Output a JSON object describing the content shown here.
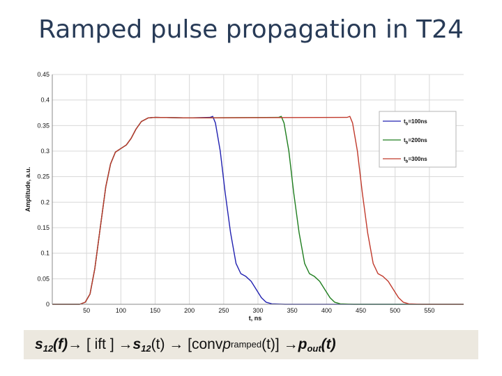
{
  "slide": {
    "title": "Ramped pulse propagation in T24",
    "formula": {
      "s_symbol": "s",
      "sub_12": "12",
      "f_paren_open": "(",
      "f_var": "f",
      "f_paren_close": ")",
      "arrow_ift": " → [ ift ] → ",
      "t_part": " (t) → [conv ",
      "p_symbol": "p",
      "sub_ramped": "ramped",
      "t_part2": "(t)] → ",
      "pout_symbol": "p",
      "sub_out": "out",
      "paren_t_open": "(",
      "t_bold": "t",
      "paren_t_close": ")"
    }
  },
  "colors": {
    "blue": "#2020b0",
    "green": "#1d7d1d",
    "red": "#c0392b",
    "grid": "#d8d8d8",
    "title": "#283b57",
    "formula_bg": "#ece8df"
  },
  "chart_data": {
    "type": "line",
    "xlabel": "t, ns",
    "ylabel": "Amplitude, a.u.",
    "xlim": [
      0,
      600
    ],
    "ylim": [
      0,
      0.45
    ],
    "x_ticks": [
      50,
      100,
      150,
      200,
      250,
      300,
      350,
      400,
      450,
      500,
      550
    ],
    "y_ticks": [
      0,
      0.05,
      0.1,
      0.15,
      0.2,
      0.25,
      0.3,
      0.35,
      0.4,
      0.45
    ],
    "y_tick_labels": [
      "0",
      "0.05",
      "0.1",
      "0.15",
      "0.2",
      "0.25",
      "0.3",
      "0.35",
      "0.4",
      "0.45"
    ],
    "grid": true,
    "legend_position": "top-right",
    "series": [
      {
        "name_base": "t",
        "name_sub": "b",
        "name_rest": "=100ns",
        "color_key": "blue",
        "points": [
          [
            0,
            0
          ],
          [
            40,
            0
          ],
          [
            48,
            0.004
          ],
          [
            55,
            0.02
          ],
          [
            62,
            0.07
          ],
          [
            70,
            0.15
          ],
          [
            78,
            0.23
          ],
          [
            85,
            0.275
          ],
          [
            92,
            0.298
          ],
          [
            100,
            0.305
          ],
          [
            108,
            0.312
          ],
          [
            115,
            0.325
          ],
          [
            122,
            0.343
          ],
          [
            130,
            0.358
          ],
          [
            140,
            0.365
          ],
          [
            150,
            0.366
          ],
          [
            200,
            0.365
          ],
          [
            230,
            0.366
          ],
          [
            234,
            0.368
          ],
          [
            238,
            0.355
          ],
          [
            245,
            0.3
          ],
          [
            252,
            0.22
          ],
          [
            260,
            0.14
          ],
          [
            268,
            0.08
          ],
          [
            275,
            0.06
          ],
          [
            282,
            0.055
          ],
          [
            290,
            0.045
          ],
          [
            297,
            0.03
          ],
          [
            305,
            0.013
          ],
          [
            312,
            0.004
          ],
          [
            320,
            0.001
          ],
          [
            340,
            0
          ],
          [
            600,
            0
          ]
        ]
      },
      {
        "name_base": "t",
        "name_sub": "b",
        "name_rest": "=200ns",
        "color_key": "green",
        "points": [
          [
            0,
            0
          ],
          [
            40,
            0
          ],
          [
            48,
            0.004
          ],
          [
            55,
            0.02
          ],
          [
            62,
            0.07
          ],
          [
            70,
            0.15
          ],
          [
            78,
            0.23
          ],
          [
            85,
            0.275
          ],
          [
            92,
            0.298
          ],
          [
            100,
            0.305
          ],
          [
            108,
            0.312
          ],
          [
            115,
            0.325
          ],
          [
            122,
            0.343
          ],
          [
            130,
            0.358
          ],
          [
            140,
            0.365
          ],
          [
            150,
            0.366
          ],
          [
            200,
            0.365
          ],
          [
            330,
            0.366
          ],
          [
            334,
            0.368
          ],
          [
            338,
            0.355
          ],
          [
            345,
            0.3
          ],
          [
            352,
            0.22
          ],
          [
            360,
            0.14
          ],
          [
            368,
            0.08
          ],
          [
            375,
            0.06
          ],
          [
            382,
            0.055
          ],
          [
            390,
            0.045
          ],
          [
            397,
            0.03
          ],
          [
            405,
            0.013
          ],
          [
            412,
            0.004
          ],
          [
            420,
            0.001
          ],
          [
            440,
            0
          ],
          [
            600,
            0
          ]
        ]
      },
      {
        "name_base": "t",
        "name_sub": "b",
        "name_rest": "=300ns",
        "color_key": "red",
        "points": [
          [
            0,
            0
          ],
          [
            40,
            0
          ],
          [
            48,
            0.004
          ],
          [
            55,
            0.02
          ],
          [
            62,
            0.07
          ],
          [
            70,
            0.15
          ],
          [
            78,
            0.23
          ],
          [
            85,
            0.275
          ],
          [
            92,
            0.298
          ],
          [
            100,
            0.305
          ],
          [
            108,
            0.312
          ],
          [
            115,
            0.325
          ],
          [
            122,
            0.343
          ],
          [
            130,
            0.358
          ],
          [
            140,
            0.365
          ],
          [
            150,
            0.366
          ],
          [
            200,
            0.365
          ],
          [
            430,
            0.366
          ],
          [
            434,
            0.368
          ],
          [
            438,
            0.355
          ],
          [
            445,
            0.3
          ],
          [
            452,
            0.22
          ],
          [
            460,
            0.14
          ],
          [
            468,
            0.08
          ],
          [
            475,
            0.06
          ],
          [
            482,
            0.055
          ],
          [
            490,
            0.045
          ],
          [
            497,
            0.03
          ],
          [
            505,
            0.013
          ],
          [
            512,
            0.004
          ],
          [
            520,
            0.001
          ],
          [
            540,
            0
          ],
          [
            600,
            0
          ]
        ]
      }
    ]
  }
}
